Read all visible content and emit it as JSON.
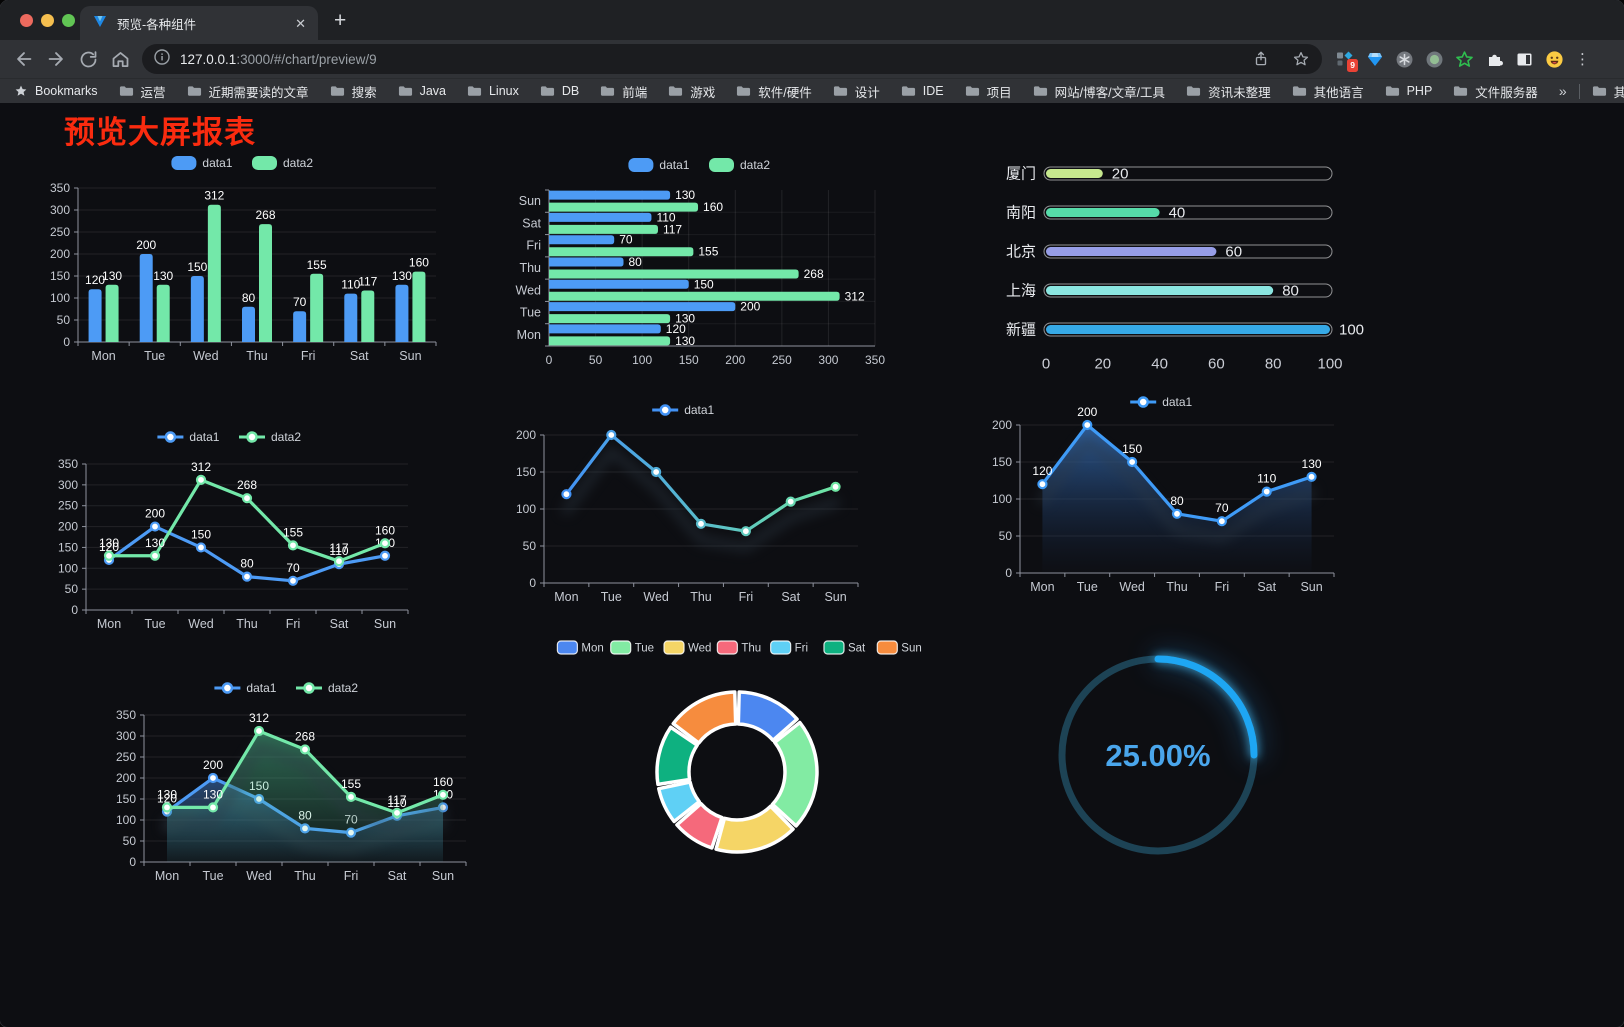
{
  "browser": {
    "tab": {
      "title": "预览-各种组件",
      "close_glyph": "✕",
      "new_glyph": "+"
    },
    "url_host": "127.0.0.1",
    "url_rest": ":3000/#/chart/preview/9",
    "bookmarks_label": "Bookmarks",
    "bookmarks": [
      "运营",
      "近期需要读的文章",
      "搜索",
      "Java",
      "Linux",
      "DB",
      "前端",
      "游戏",
      "软件/硬件",
      "设计",
      "IDE",
      "项目",
      "网站/博客/文章/工具",
      "资讯未整理",
      "其他语言",
      "PHP",
      "文件服务器"
    ],
    "overflow_glyph": "»",
    "other_bookmarks": "其他书签",
    "ext_badge": "9",
    "icons": {
      "menu": "⋮"
    }
  },
  "page": {
    "title": "预览大屏报表",
    "title_color": "#FA2B0F",
    "background": "#0D0E12"
  },
  "chart_data": [
    {
      "id": "bar-vertical",
      "type": "bar",
      "categories": [
        "Mon",
        "Tue",
        "Wed",
        "Thu",
        "Fri",
        "Sat",
        "Sun"
      ],
      "series": [
        {
          "name": "data1",
          "color": "#4D9BF5",
          "values": [
            120,
            200,
            150,
            80,
            70,
            110,
            130
          ]
        },
        {
          "name": "data2",
          "color": "#73E8A9",
          "values": [
            130,
            130,
            312,
            268,
            155,
            117,
            160
          ]
        }
      ],
      "ylim": [
        0,
        350
      ],
      "yticks": [
        0,
        50,
        100,
        150,
        200,
        250,
        300,
        350
      ],
      "labels": true,
      "legend_position": "top",
      "grid": true
    },
    {
      "id": "bar-horizontal",
      "type": "bar",
      "orientation": "horizontal",
      "categories": [
        "Mon",
        "Tue",
        "Wed",
        "Thu",
        "Fri",
        "Sat",
        "Sun"
      ],
      "display_top_to_bottom": [
        "Sun",
        "Sat",
        "Fri",
        "Thu",
        "Wed",
        "Tue",
        "Mon"
      ],
      "series": [
        {
          "name": "data1",
          "color": "#4D9BF5",
          "values": [
            120,
            200,
            150,
            80,
            70,
            110,
            130
          ]
        },
        {
          "name": "data2",
          "color": "#73E8A9",
          "values": [
            130,
            130,
            312,
            268,
            155,
            117,
            160
          ]
        }
      ],
      "xlim": [
        0,
        350
      ],
      "xticks": [
        0,
        50,
        100,
        150,
        200,
        250,
        300,
        350
      ],
      "labels": true,
      "legend_position": "top",
      "grid": true
    },
    {
      "id": "city-progress",
      "type": "bar",
      "orientation": "horizontal-progress",
      "items": [
        {
          "label": "厦门",
          "value": 20,
          "color": "#C6E88E"
        },
        {
          "label": "南阳",
          "value": 40,
          "color": "#56DBA9"
        },
        {
          "label": "北京",
          "value": 60,
          "color": "#979EE8"
        },
        {
          "label": "上海",
          "value": 80,
          "color": "#8BE6E1"
        },
        {
          "label": "新疆",
          "value": 100,
          "color": "#36A9E6"
        }
      ],
      "max": 100,
      "xticks": [
        0,
        20,
        40,
        60,
        80,
        100
      ]
    },
    {
      "id": "line-basic",
      "type": "line",
      "categories": [
        "Mon",
        "Tue",
        "Wed",
        "Thu",
        "Fri",
        "Sat",
        "Sun"
      ],
      "series": [
        {
          "name": "data1",
          "color": "#4D9BF5",
          "values": [
            120,
            200,
            150,
            80,
            70,
            110,
            130
          ]
        },
        {
          "name": "data2",
          "color": "#73E8A9",
          "values": [
            130,
            130,
            312,
            268,
            155,
            117,
            160
          ]
        }
      ],
      "ylim": [
        0,
        350
      ],
      "yticks": [
        0,
        50,
        100,
        150,
        200,
        250,
        300,
        350
      ],
      "labels": true,
      "legend_position": "top"
    },
    {
      "id": "line-gradient",
      "type": "line",
      "categories": [
        "Mon",
        "Tue",
        "Wed",
        "Thu",
        "Fri",
        "Sat",
        "Sun"
      ],
      "series": [
        {
          "name": "data1",
          "gradient": [
            "#4292F5",
            "#6FE6A3"
          ],
          "values": [
            120,
            200,
            150,
            80,
            70,
            110,
            130
          ]
        }
      ],
      "ylim": [
        0,
        200
      ],
      "yticks": [
        0,
        50,
        100,
        150,
        200
      ],
      "labels": false,
      "shadow": true,
      "legend_position": "top"
    },
    {
      "id": "area-blue",
      "type": "area",
      "categories": [
        "Mon",
        "Tue",
        "Wed",
        "Thu",
        "Fri",
        "Sat",
        "Sun"
      ],
      "series": [
        {
          "name": "data1",
          "color": "#3F9BF7",
          "values": [
            120,
            200,
            150,
            80,
            70,
            110,
            130
          ],
          "area": [
            "rgba(52,108,178,0.85)",
            "rgba(25,45,80,0.03)"
          ]
        }
      ],
      "ylim": [
        0,
        200
      ],
      "yticks": [
        0,
        50,
        100,
        150,
        200
      ],
      "labels": true,
      "shadow": true,
      "legend_position": "top"
    },
    {
      "id": "line-area",
      "type": "area",
      "categories": [
        "Mon",
        "Tue",
        "Wed",
        "Thu",
        "Fri",
        "Sat",
        "Sun"
      ],
      "series": [
        {
          "name": "data1",
          "color": "#4D9BF5",
          "values": [
            120,
            200,
            150,
            80,
            70,
            110,
            130
          ],
          "area": [
            "rgba(62,125,205,0.55)",
            "rgba(62,125,205,0.04)"
          ]
        },
        {
          "name": "data2",
          "color": "#73E8A9",
          "values": [
            130,
            130,
            312,
            268,
            155,
            117,
            160
          ],
          "area": [
            "rgba(80,200,150,0.50)",
            "rgba(80,200,150,0.04)"
          ]
        }
      ],
      "ylim": [
        0,
        350
      ],
      "yticks": [
        0,
        50,
        100,
        150,
        200,
        250,
        300,
        350
      ],
      "labels": true,
      "shadow": true,
      "legend_position": "top"
    },
    {
      "id": "donut",
      "type": "pie",
      "inner_radius_ratio": 0.6,
      "items": [
        {
          "label": "Mon",
          "value": 120,
          "color": "#4C87F0"
        },
        {
          "label": "Tue",
          "value": 200,
          "color": "#82EBA3"
        },
        {
          "label": "Wed",
          "value": 150,
          "color": "#F5D566"
        },
        {
          "label": "Thu",
          "value": 80,
          "color": "#F5697B"
        },
        {
          "label": "Fri",
          "value": 70,
          "color": "#5FD0F5"
        },
        {
          "label": "Sat",
          "value": 110,
          "color": "#0EB180"
        },
        {
          "label": "Sun",
          "value": 130,
          "color": "#F68C3E"
        }
      ],
      "legend_position": "top"
    },
    {
      "id": "gauge",
      "type": "gauge",
      "value": 25,
      "display": "25.00%",
      "min": 0,
      "max": 100,
      "arc_color": "#1EA6F3",
      "track_color": "#1D4355",
      "text_color": "#4AA6EC"
    }
  ]
}
